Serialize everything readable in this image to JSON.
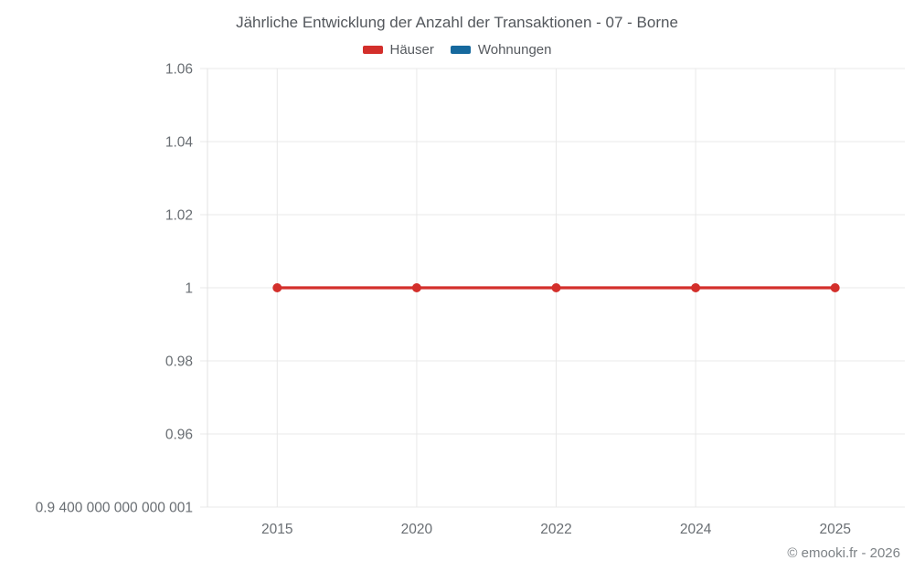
{
  "title": "Jährliche Entwicklung der Anzahl der Transaktionen - 07 - Borne",
  "legend": [
    {
      "label": "Häuser",
      "color": "#d32f2b"
    },
    {
      "label": "Wohnungen",
      "color": "#16699e"
    }
  ],
  "footer": "© emooki.fr - 2026",
  "chart_data": {
    "type": "line",
    "title": "Jährliche Entwicklung der Anzahl der Transaktionen - 07 - Borne",
    "categories": [
      "2015",
      "2020",
      "2022",
      "2024",
      "2025"
    ],
    "series": [
      {
        "name": "häuser",
        "label": "Häuser",
        "color": "#d32f2b",
        "values": [
          1,
          1,
          1,
          1,
          1
        ]
      },
      {
        "name": "wohnungen",
        "label": "Wohnungen",
        "color": "#16699e",
        "values": []
      }
    ],
    "xlabel": "",
    "ylabel": "",
    "ylim": [
      0.94,
      1.06
    ],
    "yticks": [
      {
        "value": 1.06,
        "label": "1.06"
      },
      {
        "value": 1.04,
        "label": "1.04"
      },
      {
        "value": 1.02,
        "label": "1.02"
      },
      {
        "value": 1.0,
        "label": "1"
      },
      {
        "value": 0.98,
        "label": "0.98"
      },
      {
        "value": 0.96,
        "label": "0.96"
      },
      {
        "value": 0.94,
        "label": "0.9 400 000 000 000 001"
      }
    ],
    "grid": true,
    "legend_position": "top"
  }
}
